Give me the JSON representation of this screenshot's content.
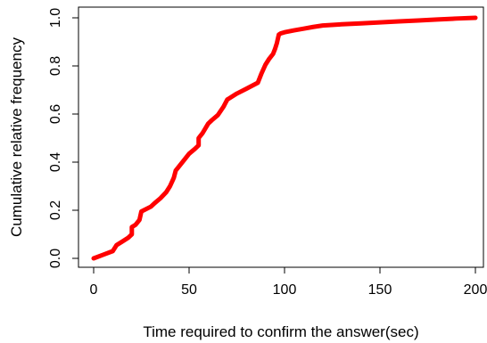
{
  "chart_data": {
    "type": "line",
    "title": "",
    "xlabel": "Time required to confirm the answer(sec)",
    "ylabel": "Cumulative relative frequency",
    "xlim": [
      0,
      200
    ],
    "ylim": [
      0,
      1
    ],
    "xticks": [
      "0",
      "50",
      "100",
      "150",
      "200"
    ],
    "yticks": [
      "0.0",
      "0.2",
      "0.4",
      "0.6",
      "0.8",
      "1.0"
    ],
    "grid": false,
    "legend": "none",
    "series": [
      {
        "color": "#ff0000",
        "x": [
          0,
          5,
          10,
          12,
          15,
          18,
          20,
          20,
          22,
          24,
          25,
          30,
          32,
          35,
          38,
          40,
          42,
          43,
          45,
          47,
          50,
          53,
          55,
          55,
          57,
          60,
          62,
          65,
          68,
          70,
          75,
          80,
          86,
          88,
          90,
          92,
          94,
          95,
          96,
          97,
          98,
          100,
          105,
          110,
          115,
          120,
          130,
          140,
          150,
          160,
          170,
          180,
          190,
          200
        ],
        "y": [
          0.0,
          0.015,
          0.03,
          0.055,
          0.07,
          0.085,
          0.1,
          0.13,
          0.14,
          0.16,
          0.195,
          0.215,
          0.23,
          0.25,
          0.275,
          0.3,
          0.335,
          0.365,
          0.385,
          0.405,
          0.435,
          0.455,
          0.47,
          0.5,
          0.52,
          0.56,
          0.575,
          0.595,
          0.63,
          0.66,
          0.685,
          0.705,
          0.73,
          0.77,
          0.805,
          0.83,
          0.85,
          0.87,
          0.895,
          0.93,
          0.935,
          0.94,
          0.948,
          0.955,
          0.962,
          0.968,
          0.973,
          0.977,
          0.981,
          0.985,
          0.989,
          0.993,
          0.997,
          1.0
        ]
      }
    ]
  }
}
